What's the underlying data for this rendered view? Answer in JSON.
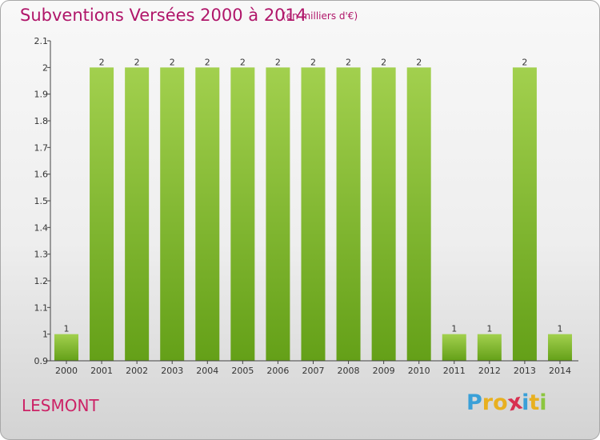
{
  "header": {
    "title": "Subventions Versées 2000 à 2014",
    "unit": "(en milliers d'€)"
  },
  "footer": {
    "place": "LESMONT",
    "logo": {
      "letters": [
        "P",
        "r",
        "o",
        "x",
        "i",
        "t",
        "i"
      ],
      "colors": [
        "#3aa0d8",
        "#e8b020",
        "#e8b020",
        "#d83050",
        "#3aa0d8",
        "#e8b020",
        "#8cc63f"
      ]
    }
  },
  "colors": {
    "bar_light": "#a2d04e",
    "bar_dark": "#64a018",
    "text": "#333333",
    "title": "#b0166a"
  },
  "chart_data": {
    "type": "bar",
    "title": "Subventions Versées 2000 à 2014",
    "subtitle": "(en milliers d'€)",
    "categories": [
      "2000",
      "2001",
      "2002",
      "2003",
      "2004",
      "2005",
      "2006",
      "2007",
      "2008",
      "2009",
      "2010",
      "2011",
      "2012",
      "2013",
      "2014"
    ],
    "values": [
      1,
      2,
      2,
      2,
      2,
      2,
      2,
      2,
      2,
      2,
      2,
      1,
      1,
      2,
      1
    ],
    "data_labels": [
      "1",
      "2",
      "2",
      "2",
      "2",
      "2",
      "2",
      "2",
      "2",
      "2",
      "2",
      "1",
      "1",
      "2",
      "1"
    ],
    "ylim": [
      0.9,
      2.1
    ],
    "yticks": [
      "0.9",
      "1",
      "1.1",
      "1.2",
      "1.3",
      "1.4",
      "1.5",
      "1.6",
      "1.7",
      "1.8",
      "1.9",
      "2",
      "2.1"
    ],
    "xlabel": "",
    "ylabel": "",
    "grid": false,
    "legend": "none"
  }
}
